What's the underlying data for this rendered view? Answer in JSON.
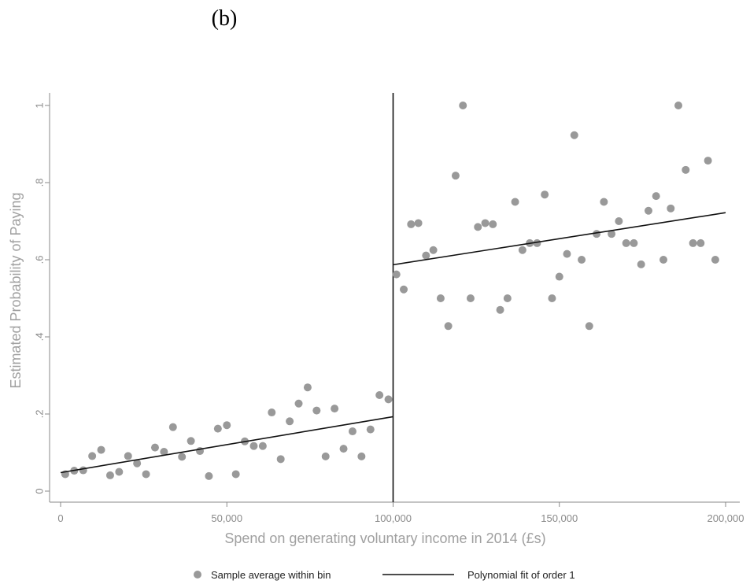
{
  "panel_label": "(b)",
  "colors": {
    "points": "#999999",
    "fit_line": "#111111",
    "cutoff_line": "#111111",
    "axis": "#8a8a8a",
    "axis_title": "#a0a0a0"
  },
  "chart_data": {
    "type": "scatter",
    "title": "",
    "xlabel": "Spend on generating voluntary income in 2014 (£s)",
    "ylabel": "Estimated Probability of Paying",
    "xlim": [
      0,
      200000
    ],
    "ylim": [
      0,
      1
    ],
    "x_ticks": [
      0,
      50000,
      100000,
      150000,
      200000
    ],
    "x_tick_labels": [
      "0",
      "50,000",
      "100,000",
      "150,000",
      "200,000"
    ],
    "y_ticks": [
      0,
      0.2,
      0.4,
      0.6,
      0.8,
      1
    ],
    "y_tick_labels": [
      "0",
      ".2",
      ".4",
      ".6",
      ".8",
      "1"
    ],
    "grid": false,
    "legend_position": "bottom",
    "cutoff": 100000,
    "series": [
      {
        "name": "Sample average within bin",
        "kind": "scatter",
        "points": [
          [
            1400,
            0.044
          ],
          [
            4100,
            0.053
          ],
          [
            6800,
            0.054
          ],
          [
            9500,
            0.091
          ],
          [
            12200,
            0.107
          ],
          [
            14900,
            0.041
          ],
          [
            17600,
            0.05
          ],
          [
            20300,
            0.091
          ],
          [
            23000,
            0.072
          ],
          [
            25700,
            0.044
          ],
          [
            28400,
            0.113
          ],
          [
            31100,
            0.102
          ],
          [
            33800,
            0.166
          ],
          [
            36500,
            0.089
          ],
          [
            39200,
            0.13
          ],
          [
            41900,
            0.104
          ],
          [
            44600,
            0.039
          ],
          [
            47300,
            0.162
          ],
          [
            50000,
            0.171
          ],
          [
            52700,
            0.044
          ],
          [
            55400,
            0.129
          ],
          [
            58100,
            0.117
          ],
          [
            60800,
            0.117
          ],
          [
            63500,
            0.204
          ],
          [
            66200,
            0.083
          ],
          [
            68900,
            0.181
          ],
          [
            71600,
            0.227
          ],
          [
            74300,
            0.269
          ],
          [
            77000,
            0.209
          ],
          [
            79700,
            0.09
          ],
          [
            82400,
            0.214
          ],
          [
            85100,
            0.11
          ],
          [
            87800,
            0.155
          ],
          [
            90500,
            0.09
          ],
          [
            93200,
            0.16
          ],
          [
            95900,
            0.249
          ],
          [
            98600,
            0.238
          ],
          [
            101000,
            0.562
          ],
          [
            103200,
            0.523
          ],
          [
            105400,
            0.692
          ],
          [
            107600,
            0.695
          ],
          [
            109900,
            0.611
          ],
          [
            112100,
            0.625
          ],
          [
            114300,
            0.5
          ],
          [
            116600,
            0.428
          ],
          [
            118800,
            0.818
          ],
          [
            121000,
            1.0
          ],
          [
            123300,
            0.5
          ],
          [
            125500,
            0.685
          ],
          [
            127700,
            0.695
          ],
          [
            130000,
            0.692
          ],
          [
            132200,
            0.47
          ],
          [
            134400,
            0.5
          ],
          [
            136700,
            0.75
          ],
          [
            138900,
            0.625
          ],
          [
            141100,
            0.643
          ],
          [
            143300,
            0.643
          ],
          [
            145600,
            0.769
          ],
          [
            147800,
            0.5
          ],
          [
            150000,
            0.556
          ],
          [
            152300,
            0.615
          ],
          [
            154500,
            0.923
          ],
          [
            156700,
            0.6
          ],
          [
            159000,
            0.428
          ],
          [
            161200,
            0.667
          ],
          [
            163400,
            0.75
          ],
          [
            165700,
            0.667
          ],
          [
            167900,
            0.7
          ],
          [
            170100,
            0.643
          ],
          [
            172400,
            0.643
          ],
          [
            174600,
            0.588
          ],
          [
            176800,
            0.727
          ],
          [
            179100,
            0.765
          ],
          [
            181300,
            0.6
          ],
          [
            183500,
            0.733
          ],
          [
            185800,
            1.0
          ],
          [
            188000,
            0.833
          ],
          [
            190200,
            0.643
          ],
          [
            192500,
            0.643
          ],
          [
            194700,
            0.857
          ],
          [
            196900,
            0.6
          ]
        ]
      },
      {
        "name": "Polynomial fit of order 1",
        "kind": "line",
        "segments": [
          [
            [
              0,
              0.048
            ],
            [
              100000,
              0.193
            ]
          ],
          [
            [
              100000,
              0.587
            ],
            [
              200000,
              0.722
            ]
          ]
        ]
      }
    ]
  }
}
